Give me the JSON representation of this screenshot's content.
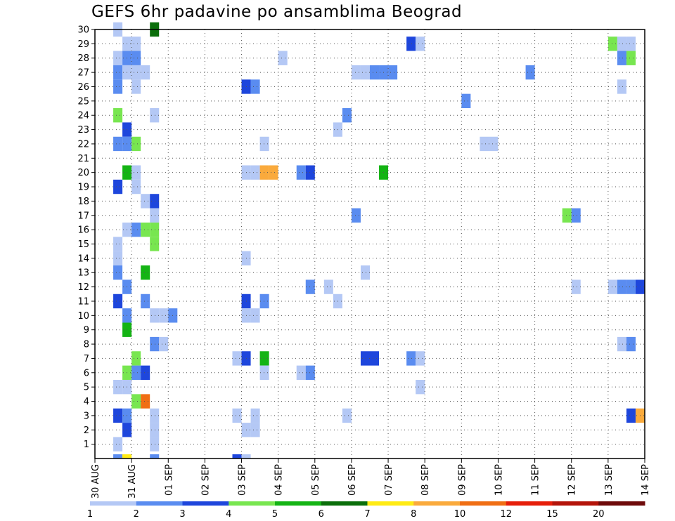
{
  "chart_data": {
    "type": "heatmap",
    "title": "GEFS 6hr padavine po ansamblima Beograd",
    "x_tick_labels": [
      "30 AUG",
      "31 AUG",
      "01 SEP",
      "02 SEP",
      "03 SEP",
      "04 SEP",
      "05 SEP",
      "06 SEP",
      "07 SEP",
      "08 SEP",
      "09 SEP",
      "10 SEP",
      "11 SEP",
      "12 SEP",
      "13 SEP",
      "14 SEP"
    ],
    "y_tick_labels": [
      "1",
      "2",
      "3",
      "4",
      "5",
      "6",
      "7",
      "8",
      "9",
      "10",
      "11",
      "12",
      "13",
      "14",
      "15",
      "16",
      "17",
      "18",
      "19",
      "20",
      "21",
      "22",
      "23",
      "24",
      "25",
      "26",
      "27",
      "28",
      "29",
      "30"
    ],
    "x_range": [
      0,
      60
    ],
    "y_range": [
      0,
      30
    ],
    "grid": true,
    "colorbar": {
      "position": "bottom",
      "labels": [
        "1",
        "2",
        "3",
        "4",
        "5",
        "6",
        "7",
        "8",
        "10",
        "12",
        "15",
        "20"
      ],
      "colors": [
        "#b4c8f5",
        "#5a8cf0",
        "#1e46dc",
        "#78e650",
        "#14b414",
        "#0a6e0a",
        "#ffeb14",
        "#faaa3c",
        "#f06e14",
        "#e61e0a",
        "#b4140a",
        "#6e0a0a"
      ]
    },
    "cells_note": "each cell: [x index of 6h step from 30 AUG 00Z, ensemble member y, color class 0-11]",
    "cells": [
      [
        2,
        30,
        0
      ],
      [
        6,
        30,
        5
      ],
      [
        3,
        29,
        0
      ],
      [
        4,
        29,
        0
      ],
      [
        34,
        29,
        2
      ],
      [
        35,
        29,
        0
      ],
      [
        56,
        29,
        3
      ],
      [
        57,
        29,
        0
      ],
      [
        58,
        29,
        0
      ],
      [
        2,
        28,
        0
      ],
      [
        3,
        28,
        1
      ],
      [
        4,
        28,
        1
      ],
      [
        20,
        28,
        0
      ],
      [
        57,
        28,
        1
      ],
      [
        58,
        28,
        3
      ],
      [
        2,
        27,
        1
      ],
      [
        3,
        27,
        0
      ],
      [
        4,
        27,
        0
      ],
      [
        5,
        27,
        0
      ],
      [
        28,
        27,
        0
      ],
      [
        29,
        27,
        0
      ],
      [
        30,
        27,
        1
      ],
      [
        31,
        27,
        1
      ],
      [
        32,
        27,
        1
      ],
      [
        47,
        27,
        1
      ],
      [
        2,
        26,
        1
      ],
      [
        4,
        26,
        0
      ],
      [
        16,
        26,
        2
      ],
      [
        17,
        26,
        1
      ],
      [
        57,
        26,
        0
      ],
      [
        40,
        25,
        1
      ],
      [
        2,
        24,
        3
      ],
      [
        6,
        24,
        0
      ],
      [
        27,
        24,
        1
      ],
      [
        3,
        23,
        2
      ],
      [
        26,
        23,
        0
      ],
      [
        2,
        22,
        1
      ],
      [
        3,
        22,
        1
      ],
      [
        4,
        22,
        3
      ],
      [
        18,
        22,
        0
      ],
      [
        42,
        22,
        0
      ],
      [
        43,
        22,
        0
      ],
      [
        3,
        20,
        4
      ],
      [
        4,
        20,
        0
      ],
      [
        16,
        20,
        0
      ],
      [
        17,
        20,
        0
      ],
      [
        18,
        20,
        7
      ],
      [
        19,
        20,
        7
      ],
      [
        22,
        20,
        1
      ],
      [
        23,
        20,
        2
      ],
      [
        31,
        20,
        4
      ],
      [
        2,
        19,
        2
      ],
      [
        4,
        19,
        0
      ],
      [
        5,
        18,
        0
      ],
      [
        6,
        18,
        2
      ],
      [
        6,
        17,
        0
      ],
      [
        28,
        17,
        1
      ],
      [
        51,
        17,
        3
      ],
      [
        52,
        17,
        1
      ],
      [
        3,
        16,
        0
      ],
      [
        4,
        16,
        1
      ],
      [
        5,
        16,
        3
      ],
      [
        6,
        16,
        3
      ],
      [
        2,
        15,
        0
      ],
      [
        6,
        15,
        3
      ],
      [
        2,
        14,
        0
      ],
      [
        16,
        14,
        0
      ],
      [
        2,
        13,
        1
      ],
      [
        5,
        13,
        4
      ],
      [
        29,
        13,
        0
      ],
      [
        3,
        12,
        1
      ],
      [
        23,
        12,
        1
      ],
      [
        25,
        12,
        0
      ],
      [
        52,
        12,
        0
      ],
      [
        56,
        12,
        0
      ],
      [
        57,
        12,
        1
      ],
      [
        58,
        12,
        1
      ],
      [
        59,
        12,
        2
      ],
      [
        2,
        11,
        2
      ],
      [
        5,
        11,
        1
      ],
      [
        16,
        11,
        2
      ],
      [
        18,
        11,
        1
      ],
      [
        26,
        11,
        0
      ],
      [
        3,
        10,
        1
      ],
      [
        6,
        10,
        0
      ],
      [
        7,
        10,
        0
      ],
      [
        8,
        10,
        1
      ],
      [
        16,
        10,
        0
      ],
      [
        17,
        10,
        0
      ],
      [
        3,
        9,
        4
      ],
      [
        6,
        8,
        1
      ],
      [
        7,
        8,
        0
      ],
      [
        57,
        8,
        0
      ],
      [
        58,
        8,
        1
      ],
      [
        4,
        7,
        3
      ],
      [
        15,
        7,
        0
      ],
      [
        16,
        7,
        2
      ],
      [
        18,
        7,
        4
      ],
      [
        29,
        7,
        2
      ],
      [
        30,
        7,
        2
      ],
      [
        34,
        7,
        1
      ],
      [
        35,
        7,
        0
      ],
      [
        3,
        6,
        3
      ],
      [
        4,
        6,
        1
      ],
      [
        5,
        6,
        2
      ],
      [
        18,
        6,
        0
      ],
      [
        22,
        6,
        0
      ],
      [
        23,
        6,
        1
      ],
      [
        2,
        5,
        0
      ],
      [
        3,
        5,
        0
      ],
      [
        35,
        5,
        0
      ],
      [
        4,
        4,
        3
      ],
      [
        5,
        4,
        8
      ],
      [
        2,
        3,
        2
      ],
      [
        3,
        3,
        1
      ],
      [
        6,
        3,
        0
      ],
      [
        15,
        3,
        0
      ],
      [
        17,
        3,
        0
      ],
      [
        27,
        3,
        0
      ],
      [
        58,
        3,
        2
      ],
      [
        59,
        3,
        7
      ],
      [
        3,
        2,
        2
      ],
      [
        6,
        2,
        0
      ],
      [
        16,
        2,
        0
      ],
      [
        17,
        2,
        0
      ],
      [
        2,
        1,
        0
      ],
      [
        6,
        1,
        0
      ],
      [
        2,
        0,
        1
      ],
      [
        3,
        0,
        6
      ],
      [
        6,
        0,
        1
      ],
      [
        15,
        0,
        2
      ],
      [
        16,
        0,
        0
      ]
    ]
  }
}
